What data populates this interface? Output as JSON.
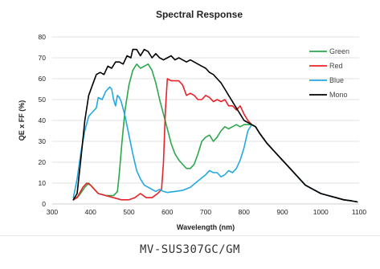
{
  "chart_data": {
    "type": "line",
    "title": "Spectral Response",
    "xlabel": "Wavelength (nm)",
    "ylabel": "QE x FF (%)",
    "xlim": [
      300,
      1100
    ],
    "ylim": [
      0,
      80
    ],
    "xticks": [
      300,
      400,
      500,
      600,
      700,
      800,
      900,
      1000,
      1100
    ],
    "yticks": [
      0,
      10,
      20,
      30,
      40,
      50,
      60,
      70,
      80
    ],
    "grid": "horizontal",
    "legend": "top-right",
    "series": [
      {
        "name": "Green",
        "color": "#2ca84a",
        "points": [
          [
            355,
            2
          ],
          [
            370,
            4
          ],
          [
            385,
            8
          ],
          [
            395,
            10
          ],
          [
            405,
            8
          ],
          [
            420,
            5
          ],
          [
            440,
            4
          ],
          [
            460,
            4
          ],
          [
            470,
            6
          ],
          [
            475,
            15
          ],
          [
            482,
            30
          ],
          [
            490,
            45
          ],
          [
            500,
            57
          ],
          [
            510,
            64
          ],
          [
            520,
            67
          ],
          [
            530,
            65
          ],
          [
            540,
            66
          ],
          [
            550,
            67
          ],
          [
            560,
            64
          ],
          [
            570,
            58
          ],
          [
            580,
            50
          ],
          [
            590,
            43
          ],
          [
            600,
            36
          ],
          [
            610,
            29
          ],
          [
            620,
            24
          ],
          [
            630,
            21
          ],
          [
            640,
            19
          ],
          [
            650,
            17
          ],
          [
            660,
            17
          ],
          [
            670,
            19
          ],
          [
            680,
            24
          ],
          [
            690,
            30
          ],
          [
            700,
            32
          ],
          [
            710,
            33
          ],
          [
            720,
            30
          ],
          [
            730,
            32
          ],
          [
            740,
            35
          ],
          [
            750,
            37
          ],
          [
            760,
            36
          ],
          [
            770,
            37
          ],
          [
            780,
            38
          ],
          [
            790,
            37
          ],
          [
            800,
            38
          ],
          [
            810,
            38
          ],
          [
            820,
            38
          ],
          [
            830,
            37
          ],
          [
            840,
            34
          ],
          [
            860,
            29
          ],
          [
            880,
            25
          ],
          [
            900,
            21
          ],
          [
            920,
            17
          ],
          [
            940,
            13
          ],
          [
            960,
            9
          ],
          [
            980,
            7
          ],
          [
            1000,
            5
          ],
          [
            1020,
            4
          ],
          [
            1040,
            3
          ],
          [
            1060,
            2
          ],
          [
            1080,
            1.5
          ],
          [
            1095,
            1
          ]
        ]
      },
      {
        "name": "Red",
        "color": "#e8232a",
        "points": [
          [
            355,
            2
          ],
          [
            365,
            3
          ],
          [
            380,
            8
          ],
          [
            390,
            10
          ],
          [
            400,
            9
          ],
          [
            410,
            7
          ],
          [
            420,
            5
          ],
          [
            440,
            4
          ],
          [
            460,
            3
          ],
          [
            480,
            2
          ],
          [
            500,
            2
          ],
          [
            515,
            3
          ],
          [
            530,
            5
          ],
          [
            545,
            3
          ],
          [
            560,
            3
          ],
          [
            575,
            5
          ],
          [
            585,
            7
          ],
          [
            590,
            20
          ],
          [
            595,
            45
          ],
          [
            600,
            60
          ],
          [
            610,
            59
          ],
          [
            620,
            59
          ],
          [
            630,
            59
          ],
          [
            640,
            57
          ],
          [
            650,
            52
          ],
          [
            660,
            53
          ],
          [
            670,
            52
          ],
          [
            680,
            50
          ],
          [
            690,
            50
          ],
          [
            700,
            52
          ],
          [
            710,
            51
          ],
          [
            720,
            49
          ],
          [
            730,
            50
          ],
          [
            740,
            49
          ],
          [
            750,
            50
          ],
          [
            760,
            47
          ],
          [
            770,
            47
          ],
          [
            780,
            45
          ],
          [
            790,
            47
          ],
          [
            800,
            43
          ],
          [
            810,
            40
          ],
          [
            820,
            38
          ],
          [
            830,
            37
          ],
          [
            840,
            34
          ],
          [
            860,
            29
          ],
          [
            880,
            25
          ],
          [
            900,
            21
          ],
          [
            920,
            17
          ],
          [
            940,
            13
          ],
          [
            960,
            9
          ],
          [
            980,
            7
          ],
          [
            1000,
            5
          ],
          [
            1020,
            4
          ],
          [
            1040,
            3
          ],
          [
            1060,
            2
          ],
          [
            1080,
            1.5
          ],
          [
            1095,
            1
          ]
        ]
      },
      {
        "name": "Blue",
        "color": "#22a9de",
        "points": [
          [
            355,
            3
          ],
          [
            365,
            12
          ],
          [
            375,
            25
          ],
          [
            385,
            35
          ],
          [
            395,
            42
          ],
          [
            405,
            44
          ],
          [
            415,
            46
          ],
          [
            420,
            51
          ],
          [
            430,
            50
          ],
          [
            440,
            54
          ],
          [
            450,
            56
          ],
          [
            455,
            55
          ],
          [
            460,
            50
          ],
          [
            465,
            47
          ],
          [
            470,
            52
          ],
          [
            475,
            51
          ],
          [
            480,
            49
          ],
          [
            490,
            42
          ],
          [
            500,
            33
          ],
          [
            510,
            24
          ],
          [
            520,
            16
          ],
          [
            530,
            12
          ],
          [
            540,
            9
          ],
          [
            550,
            8
          ],
          [
            560,
            7
          ],
          [
            570,
            6
          ],
          [
            580,
            7
          ],
          [
            590,
            6
          ],
          [
            600,
            5.5
          ],
          [
            620,
            6
          ],
          [
            640,
            6.5
          ],
          [
            660,
            8
          ],
          [
            680,
            11
          ],
          [
            700,
            14
          ],
          [
            710,
            16
          ],
          [
            720,
            15
          ],
          [
            730,
            15
          ],
          [
            740,
            13
          ],
          [
            750,
            14
          ],
          [
            760,
            16
          ],
          [
            770,
            15
          ],
          [
            780,
            17
          ],
          [
            790,
            21
          ],
          [
            800,
            27
          ],
          [
            810,
            35
          ],
          [
            820,
            38
          ],
          [
            830,
            37
          ],
          [
            840,
            34
          ],
          [
            860,
            29
          ],
          [
            880,
            25
          ],
          [
            900,
            21
          ],
          [
            920,
            17
          ],
          [
            940,
            13
          ],
          [
            960,
            9
          ],
          [
            980,
            7
          ],
          [
            1000,
            5
          ],
          [
            1020,
            4
          ],
          [
            1040,
            3
          ],
          [
            1060,
            2
          ],
          [
            1080,
            1.5
          ],
          [
            1095,
            1
          ]
        ]
      },
      {
        "name": "Mono",
        "color": "#000000",
        "points": [
          [
            355,
            2
          ],
          [
            365,
            5
          ],
          [
            375,
            22
          ],
          [
            385,
            40
          ],
          [
            395,
            52
          ],
          [
            405,
            57
          ],
          [
            415,
            62
          ],
          [
            425,
            63
          ],
          [
            435,
            62
          ],
          [
            445,
            66
          ],
          [
            455,
            65
          ],
          [
            465,
            68
          ],
          [
            475,
            68
          ],
          [
            485,
            67
          ],
          [
            495,
            71
          ],
          [
            505,
            70
          ],
          [
            510,
            74
          ],
          [
            520,
            74
          ],
          [
            530,
            71
          ],
          [
            540,
            74
          ],
          [
            550,
            73
          ],
          [
            560,
            70
          ],
          [
            570,
            72
          ],
          [
            580,
            70
          ],
          [
            590,
            69
          ],
          [
            600,
            70
          ],
          [
            610,
            71
          ],
          [
            620,
            69
          ],
          [
            630,
            70
          ],
          [
            640,
            69
          ],
          [
            650,
            68
          ],
          [
            660,
            69
          ],
          [
            670,
            68
          ],
          [
            680,
            67
          ],
          [
            690,
            66
          ],
          [
            700,
            65
          ],
          [
            710,
            63
          ],
          [
            720,
            62
          ],
          [
            730,
            60
          ],
          [
            740,
            58
          ],
          [
            750,
            55
          ],
          [
            760,
            52
          ],
          [
            770,
            49
          ],
          [
            780,
            46
          ],
          [
            790,
            43
          ],
          [
            800,
            40
          ],
          [
            810,
            39
          ],
          [
            820,
            38
          ],
          [
            830,
            37
          ],
          [
            840,
            34
          ],
          [
            860,
            29
          ],
          [
            880,
            25
          ],
          [
            900,
            21
          ],
          [
            920,
            17
          ],
          [
            940,
            13
          ],
          [
            960,
            9
          ],
          [
            980,
            7
          ],
          [
            1000,
            5
          ],
          [
            1020,
            4
          ],
          [
            1040,
            3
          ],
          [
            1060,
            2
          ],
          [
            1080,
            1.5
          ],
          [
            1095,
            1
          ]
        ]
      }
    ]
  },
  "caption": "MV-SUS307GC/GM"
}
